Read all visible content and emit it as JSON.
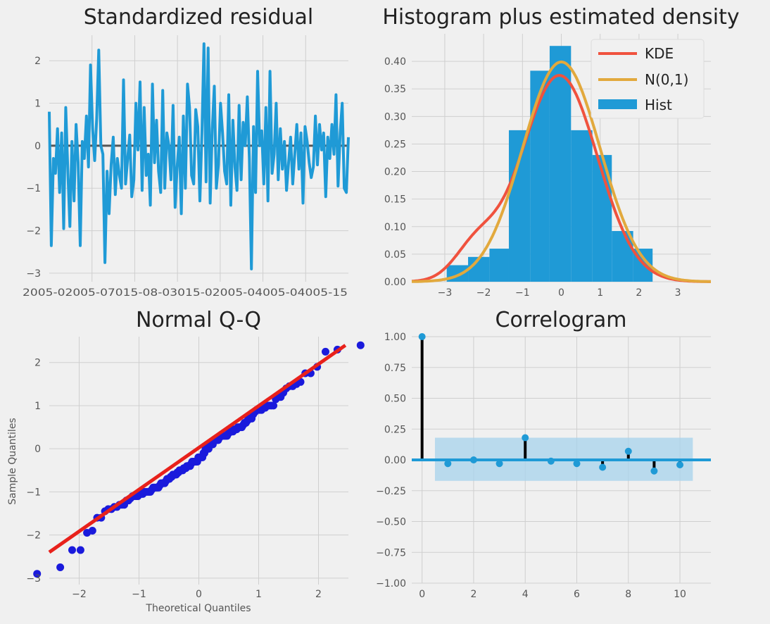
{
  "chart_data": [
    {
      "id": "std-resid",
      "type": "line",
      "title": "Standardized residual",
      "xlabel": "",
      "ylabel": "",
      "ylim": [
        -3.2,
        2.6
      ],
      "yticks": [
        -3,
        -2,
        -1,
        0,
        1,
        2
      ],
      "xtick_text": "2005-02005-07015-08-03015-02005-04005-04005-15",
      "grid": true,
      "zero_line": 0,
      "colors": {
        "line": "#1f9ad6",
        "zero": "#555555"
      },
      "values": [
        0.8,
        -2.35,
        -0.3,
        -0.65,
        0.4,
        -1.1,
        0.3,
        -1.95,
        0.9,
        -0.6,
        -1.9,
        0.1,
        -1.3,
        0.5,
        -0.4,
        -2.35,
        0.1,
        -0.3,
        0.7,
        -0.5,
        1.9,
        0.4,
        -0.35,
        0.65,
        2.25,
        0.0,
        -0.2,
        -2.75,
        -0.6,
        -1.6,
        -0.45,
        0.2,
        -1.15,
        -0.3,
        -0.7,
        -1.0,
        1.55,
        -0.9,
        -0.3,
        0.25,
        -1.2,
        -0.8,
        1.0,
        -0.1,
        1.5,
        -1.05,
        0.9,
        -0.7,
        -0.2,
        -1.4,
        1.45,
        -0.4,
        0.6,
        -0.6,
        -1.1,
        1.3,
        -1.0,
        0.3,
        0.0,
        -0.8,
        0.95,
        -1.45,
        -0.5,
        0.2,
        -1.6,
        0.7,
        -1.0,
        1.45,
        0.9,
        -0.7,
        -0.9,
        0.85,
        0.45,
        -1.3,
        0.3,
        2.4,
        -0.85,
        2.3,
        -1.35,
        0.4,
        1.4,
        -1.0,
        -0.45,
        1.0,
        0.3,
        -0.6,
        -0.9,
        1.2,
        -1.4,
        0.6,
        -0.5,
        -1.05,
        0.95,
        -0.8,
        0.55,
        0.0,
        1.15,
        -0.3,
        -2.9,
        0.45,
        -1.1,
        1.75,
        0.0,
        0.35,
        -0.9,
        0.9,
        -1.3,
        1.75,
        -0.65,
        -0.2,
        1.0,
        -0.8,
        0.4,
        -0.55,
        0.1,
        -1.05,
        -0.4,
        0.2,
        -0.9,
        -0.2,
        0.5,
        -0.55,
        0.3,
        -1.35,
        0.45,
        0.1,
        -0.4,
        -0.75,
        -0.5,
        0.7,
        -0.45,
        0.5,
        -0.1,
        0.3,
        -1.2,
        0.2,
        -0.3,
        0.5,
        -0.2,
        1.2,
        -0.95,
        0.3,
        1.0,
        -1.0,
        -1.1,
        0.2
      ]
    },
    {
      "id": "histogram",
      "type": "bar",
      "title": "Histogram plus estimated density",
      "xlabel": "",
      "ylabel": "",
      "xlim": [
        -3.85,
        3.85
      ],
      "ylim": [
        0,
        0.45
      ],
      "xticks": [
        -3,
        -2,
        -1,
        0,
        1,
        2,
        3
      ],
      "yticks": [
        "0.00",
        "0.05",
        "0.10",
        "0.15",
        "0.20",
        "0.25",
        "0.30",
        "0.35",
        "0.40"
      ],
      "grid": true,
      "bins": [
        {
          "x0": -2.95,
          "x1": -2.4,
          "h": 0.03
        },
        {
          "x0": -2.4,
          "x1": -1.85,
          "h": 0.045
        },
        {
          "x0": -1.85,
          "x1": -1.35,
          "h": 0.06
        },
        {
          "x0": -1.35,
          "x1": -0.8,
          "h": 0.275
        },
        {
          "x0": -0.8,
          "x1": -0.3,
          "h": 0.383
        },
        {
          "x0": -0.3,
          "x1": 0.25,
          "h": 0.428
        },
        {
          "x0": 0.25,
          "x1": 0.8,
          "h": 0.275
        },
        {
          "x0": 0.8,
          "x1": 1.3,
          "h": 0.23
        },
        {
          "x0": 1.3,
          "x1": 1.85,
          "h": 0.092
        },
        {
          "x0": 1.85,
          "x1": 2.35,
          "h": 0.06
        }
      ],
      "legend": {
        "position": "top-right",
        "items": [
          {
            "label": "KDE",
            "color": "#f0523e",
            "kind": "line"
          },
          {
            "label": "N(0,1)",
            "color": "#e2a93d",
            "kind": "line"
          },
          {
            "label": "Hist",
            "color": "#1f9ad6",
            "kind": "patch"
          }
        ]
      },
      "colors": {
        "hist": "#1f9ad6",
        "kde": "#f0523e",
        "normal": "#e2a93d"
      }
    },
    {
      "id": "qq",
      "type": "scatter",
      "title": "Normal Q-Q",
      "xlabel": "Theoretical Quantiles",
      "ylabel": "Sample Quantiles",
      "xlim": [
        -2.5,
        2.5
      ],
      "ylim": [
        -3.15,
        2.6
      ],
      "xticks": [
        -2,
        -1,
        0,
        1,
        2
      ],
      "yticks": [
        -3,
        -2,
        -1,
        0,
        1,
        2
      ],
      "grid": true,
      "reference_line": {
        "x": [
          -2.5,
          2.45
        ],
        "y": [
          -2.4,
          2.4
        ]
      },
      "colors": {
        "points": "#1a1adc",
        "line": "#e8211b"
      }
    },
    {
      "id": "correlogram",
      "type": "bar",
      "title": "Correlogram",
      "xlabel": "",
      "ylabel": "",
      "xlim": [
        -0.4,
        11.2
      ],
      "ylim": [
        -1.0,
        1.0
      ],
      "xticks": [
        0,
        2,
        4,
        6,
        8,
        10
      ],
      "yticks": [
        "−1.00",
        "−0.75",
        "−0.50",
        "−0.25",
        "0.00",
        "0.25",
        "0.50",
        "0.75",
        "1.00"
      ],
      "grid": true,
      "lags": [
        0,
        1,
        2,
        3,
        4,
        5,
        6,
        7,
        8,
        9,
        10
      ],
      "values": [
        1.0,
        -0.03,
        0.0,
        -0.03,
        0.18,
        -0.01,
        -0.03,
        -0.06,
        0.07,
        -0.09,
        -0.04
      ],
      "confidence_band": {
        "x": [
          0.5,
          10.5
        ],
        "y": [
          -0.17,
          0.18
        ]
      },
      "colors": {
        "stem": "#000000",
        "marker": "#1f9ad6",
        "band": "#a7d3ec",
        "zero": "#1f9ad6"
      }
    }
  ]
}
